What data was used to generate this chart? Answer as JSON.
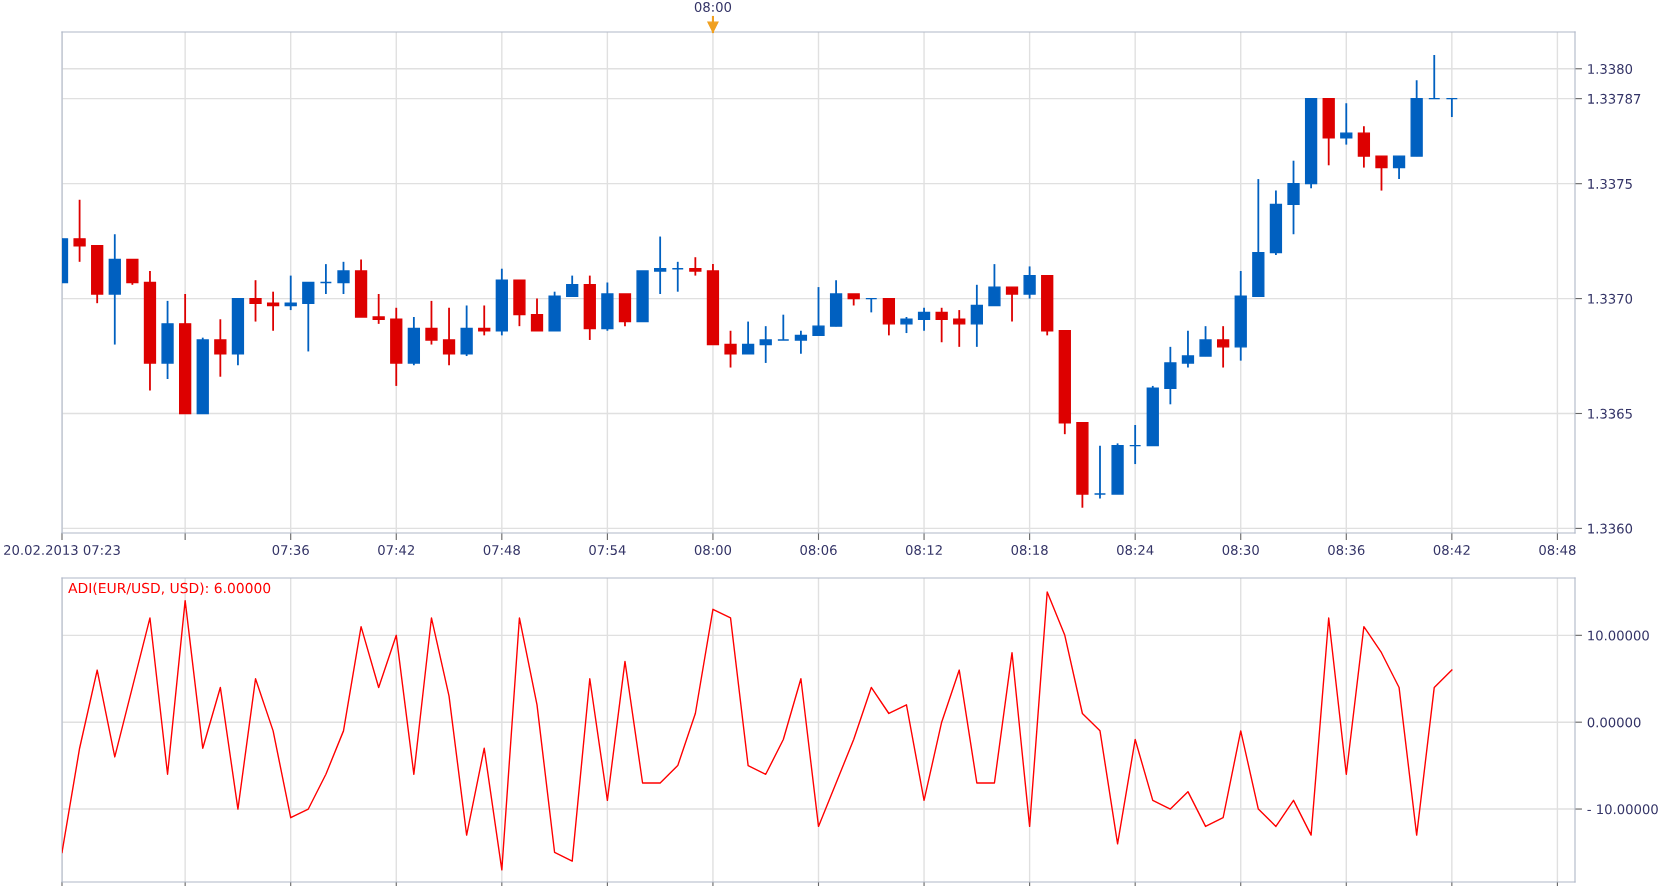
{
  "chart_data": [
    {
      "type": "candlestick",
      "x": [
        "2013-02-20T07:23",
        "2013-02-20T07:24",
        "2013-02-20T07:25",
        "2013-02-20T07:26",
        "2013-02-20T07:27",
        "2013-02-20T07:28",
        "2013-02-20T07:29",
        "2013-02-20T07:30",
        "2013-02-20T07:31",
        "2013-02-20T07:32",
        "2013-02-20T07:33",
        "2013-02-20T07:34",
        "2013-02-20T07:35",
        "2013-02-20T07:36",
        "2013-02-20T07:37",
        "2013-02-20T07:38",
        "2013-02-20T07:39",
        "2013-02-20T07:40",
        "2013-02-20T07:41",
        "2013-02-20T07:42",
        "2013-02-20T07:43",
        "2013-02-20T07:44",
        "2013-02-20T07:45",
        "2013-02-20T07:46",
        "2013-02-20T07:47",
        "2013-02-20T07:48",
        "2013-02-20T07:49",
        "2013-02-20T07:50",
        "2013-02-20T07:51",
        "2013-02-20T07:52",
        "2013-02-20T07:53",
        "2013-02-20T07:54",
        "2013-02-20T07:55",
        "2013-02-20T07:56",
        "2013-02-20T07:57",
        "2013-02-20T07:58",
        "2013-02-20T07:59",
        "2013-02-20T08:00",
        "2013-02-20T08:01",
        "2013-02-20T08:02",
        "2013-02-20T08:03",
        "2013-02-20T08:04",
        "2013-02-20T08:05",
        "2013-02-20T08:06",
        "2013-02-20T08:07",
        "2013-02-20T08:08",
        "2013-02-20T08:09",
        "2013-02-20T08:10",
        "2013-02-20T08:11",
        "2013-02-20T08:12",
        "2013-02-20T08:13",
        "2013-02-20T08:14",
        "2013-02-20T08:15",
        "2013-02-20T08:16",
        "2013-02-20T08:17",
        "2013-02-20T08:18",
        "2013-02-20T08:19",
        "2013-02-20T08:20",
        "2013-02-20T08:21",
        "2013-02-20T08:22",
        "2013-02-20T08:23",
        "2013-02-20T08:24",
        "2013-02-20T08:25",
        "2013-02-20T08:26",
        "2013-02-20T08:27",
        "2013-02-20T08:28",
        "2013-02-20T08:29",
        "2013-02-20T08:30",
        "2013-02-20T08:31",
        "2013-02-20T08:32",
        "2013-02-20T08:33",
        "2013-02-20T08:34",
        "2013-02-20T08:35",
        "2013-02-20T08:36",
        "2013-02-20T08:37",
        "2013-02-20T08:38",
        "2013-02-20T08:39",
        "2013-02-20T08:40",
        "2013-02-20T08:41",
        "2013-02-20T08:42"
      ],
      "ohlc": [
        [
          1.33707,
          1.33726,
          1.33707,
          1.33726
        ],
        [
          1.33726,
          1.33743,
          1.33716,
          1.33723
        ],
        [
          1.33723,
          1.33723,
          1.33698,
          1.33702
        ],
        [
          1.33702,
          1.33728,
          1.3368,
          1.33717
        ],
        [
          1.33717,
          1.33717,
          1.33706,
          1.33707
        ],
        [
          1.33707,
          1.33712,
          1.3366,
          1.33672
        ],
        [
          1.33672,
          1.33699,
          1.33665,
          1.33689
        ],
        [
          1.33689,
          1.33702,
          1.3365,
          1.3365
        ],
        [
          1.3365,
          1.33683,
          1.3365,
          1.33682
        ],
        [
          1.33682,
          1.33691,
          1.33666,
          1.33676
        ],
        [
          1.33676,
          1.337,
          1.33671,
          1.337
        ],
        [
          1.337,
          1.33708,
          1.3369,
          1.33698
        ],
        [
          1.33698,
          1.33703,
          1.33686,
          1.33697
        ],
        [
          1.33697,
          1.3371,
          1.33695,
          1.33698
        ],
        [
          1.33698,
          1.33707,
          1.33677,
          1.33707
        ],
        [
          1.33707,
          1.33715,
          1.33702,
          1.33707
        ],
        [
          1.33707,
          1.33716,
          1.33702,
          1.33712
        ],
        [
          1.33712,
          1.33717,
          1.33692,
          1.33692
        ],
        [
          1.33692,
          1.33702,
          1.33689,
          1.33691
        ],
        [
          1.33691,
          1.33696,
          1.33662,
          1.33672
        ],
        [
          1.33672,
          1.33692,
          1.33671,
          1.33687
        ],
        [
          1.33687,
          1.33699,
          1.3368,
          1.33682
        ],
        [
          1.33682,
          1.33696,
          1.33671,
          1.33676
        ],
        [
          1.33676,
          1.33697,
          1.33675,
          1.33687
        ],
        [
          1.33687,
          1.33697,
          1.33684,
          1.33686
        ],
        [
          1.33686,
          1.33713,
          1.33684,
          1.33708
        ],
        [
          1.33708,
          1.33708,
          1.33688,
          1.33693
        ],
        [
          1.33693,
          1.337,
          1.33686,
          1.33686
        ],
        [
          1.33686,
          1.33703,
          1.33686,
          1.33701
        ],
        [
          1.33701,
          1.3371,
          1.33701,
          1.33706
        ],
        [
          1.33706,
          1.3371,
          1.33682,
          1.33687
        ],
        [
          1.33687,
          1.33707,
          1.33686,
          1.33702
        ],
        [
          1.33702,
          1.33702,
          1.33688,
          1.3369
        ],
        [
          1.3369,
          1.33712,
          1.3369,
          1.33712
        ],
        [
          1.33712,
          1.33727,
          1.33702,
          1.33713
        ],
        [
          1.33713,
          1.33716,
          1.33703,
          1.33713
        ],
        [
          1.33713,
          1.33718,
          1.3371,
          1.33712
        ],
        [
          1.33712,
          1.33715,
          1.3368,
          1.3368
        ],
        [
          1.3368,
          1.33686,
          1.3367,
          1.33676
        ],
        [
          1.33676,
          1.3369,
          1.33676,
          1.3368
        ],
        [
          1.3368,
          1.33688,
          1.33672,
          1.33682
        ],
        [
          1.33682,
          1.33693,
          1.33682,
          1.33682
        ],
        [
          1.33682,
          1.33686,
          1.33676,
          1.33684
        ],
        [
          1.33684,
          1.33705,
          1.33684,
          1.33688
        ],
        [
          1.33688,
          1.33708,
          1.33688,
          1.33702
        ],
        [
          1.33702,
          1.33702,
          1.33697,
          1.337
        ],
        [
          1.337,
          1.337,
          1.33694,
          1.337
        ],
        [
          1.337,
          1.337,
          1.33684,
          1.33689
        ],
        [
          1.33689,
          1.33692,
          1.33685,
          1.33691
        ],
        [
          1.33691,
          1.33696,
          1.33686,
          1.33694
        ],
        [
          1.33694,
          1.33696,
          1.33681,
          1.33691
        ],
        [
          1.33691,
          1.33695,
          1.33679,
          1.33689
        ],
        [
          1.33689,
          1.33706,
          1.33679,
          1.33697
        ],
        [
          1.33697,
          1.33715,
          1.33697,
          1.33705
        ],
        [
          1.33705,
          1.33705,
          1.3369,
          1.33702
        ],
        [
          1.33702,
          1.33714,
          1.337,
          1.3371
        ],
        [
          1.3371,
          1.3371,
          1.33684,
          1.33686
        ],
        [
          1.33686,
          1.33686,
          1.33641,
          1.33646
        ],
        [
          1.33646,
          1.33646,
          1.33609,
          1.33615
        ],
        [
          1.33615,
          1.33636,
          1.33613,
          1.33615
        ],
        [
          1.33615,
          1.33637,
          1.33615,
          1.33636
        ],
        [
          1.33636,
          1.33645,
          1.33628,
          1.33636
        ],
        [
          1.33636,
          1.33662,
          1.33636,
          1.33661
        ],
        [
          1.33661,
          1.33679,
          1.33654,
          1.33672
        ],
        [
          1.33672,
          1.33686,
          1.3367,
          1.33675
        ],
        [
          1.33675,
          1.33688,
          1.33675,
          1.33682
        ],
        [
          1.33682,
          1.33688,
          1.3367,
          1.33679
        ],
        [
          1.33679,
          1.33712,
          1.33673,
          1.33701
        ],
        [
          1.33701,
          1.33752,
          1.33701,
          1.3372
        ],
        [
          1.3372,
          1.33747,
          1.33719,
          1.33741
        ],
        [
          1.33741,
          1.3376,
          1.33728,
          1.3375
        ],
        [
          1.3375,
          1.33787,
          1.33748,
          1.33787
        ],
        [
          1.33787,
          1.33787,
          1.33758,
          1.3377
        ],
        [
          1.3377,
          1.33785,
          1.33767,
          1.33772
        ],
        [
          1.33772,
          1.33775,
          1.33757,
          1.33762
        ],
        [
          1.33762,
          1.33762,
          1.33747,
          1.33757
        ],
        [
          1.33757,
          1.33762,
          1.33752,
          1.33762
        ],
        [
          1.33762,
          1.33795,
          1.33762,
          1.33787
        ],
        [
          1.33787,
          1.33806,
          1.33787,
          1.33787
        ],
        [
          1.33787,
          1.33787,
          1.33779,
          1.33787
        ]
      ],
      "colors": [
        "#0060c0",
        "#dd0000",
        "#dd0000",
        "#0060c0",
        "#dd0000",
        "#dd0000",
        "#0060c0",
        "#dd0000",
        "#0060c0",
        "#dd0000",
        "#0060c0",
        "#dd0000",
        "#dd0000",
        "#0060c0",
        "#0060c0",
        "#0060c0",
        "#0060c0",
        "#dd0000",
        "#dd0000",
        "#dd0000",
        "#0060c0",
        "#dd0000",
        "#dd0000",
        "#0060c0",
        "#dd0000",
        "#0060c0",
        "#dd0000",
        "#dd0000",
        "#0060c0",
        "#0060c0",
        "#dd0000",
        "#0060c0",
        "#dd0000",
        "#0060c0",
        "#0060c0",
        "#0060c0",
        "#dd0000",
        "#dd0000",
        "#dd0000",
        "#0060c0",
        "#0060c0",
        "#0060c0",
        "#0060c0",
        "#0060c0",
        "#0060c0",
        "#dd0000",
        "#0060c0",
        "#dd0000",
        "#0060c0",
        "#0060c0",
        "#dd0000",
        "#dd0000",
        "#0060c0",
        "#0060c0",
        "#dd0000",
        "#0060c0",
        "#dd0000",
        "#dd0000",
        "#dd0000",
        "#0060c0",
        "#0060c0",
        "#0060c0",
        "#0060c0",
        "#0060c0",
        "#0060c0",
        "#0060c0",
        "#dd0000",
        "#0060c0",
        "#0060c0",
        "#0060c0",
        "#0060c0",
        "#0060c0",
        "#dd0000",
        "#0060c0",
        "#dd0000",
        "#dd0000",
        "#0060c0",
        "#0060c0",
        "#0060c0",
        "#0060c0"
      ],
      "xlim": [
        "2013-02-20T07:23",
        "2013-02-20T08:49"
      ],
      "xticks": [
        {
          "value": "2013-02-20T07:23",
          "label": "20.02.2013 07:23"
        },
        {
          "value": "2013-02-20T07:30",
          "label": null
        },
        {
          "value": "2013-02-20T07:36",
          "label": "07:36"
        },
        {
          "value": "2013-02-20T07:42",
          "label": "07:42"
        },
        {
          "value": "2013-02-20T07:48",
          "label": "07:48"
        },
        {
          "value": "2013-02-20T07:54",
          "label": "07:54"
        },
        {
          "value": "2013-02-20T08:00",
          "label": "08:00"
        },
        {
          "value": "2013-02-20T08:06",
          "label": "08:06"
        },
        {
          "value": "2013-02-20T08:12",
          "label": "08:12"
        },
        {
          "value": "2013-02-20T08:18",
          "label": "08:18"
        },
        {
          "value": "2013-02-20T08:24",
          "label": "08:24"
        },
        {
          "value": "2013-02-20T08:30",
          "label": "08:30"
        },
        {
          "value": "2013-02-20T08:36",
          "label": "08:36"
        },
        {
          "value": "2013-02-20T08:42",
          "label": "08:42"
        },
        {
          "value": "2013-02-20T08:48",
          "label": "08:48"
        }
      ],
      "ref_lines": [
        {
          "axis": "x",
          "value": "2013-02-20T08:00",
          "label": "08:00",
          "color": "#f0a020"
        }
      ],
      "ylim": [
        1.33598,
        1.33816
      ],
      "yticks": [
        {
          "value": 1.336,
          "label": "1.3360"
        },
        {
          "value": 1.3365,
          "label": "1.3365"
        },
        {
          "value": 1.337,
          "label": "1.3370"
        },
        {
          "value": 1.3375,
          "label": "1.3375"
        },
        {
          "value": 1.33787,
          "label": "1.33787"
        },
        {
          "value": 1.338,
          "label": "1.3380"
        }
      ],
      "grid": true
    },
    {
      "type": "line",
      "title": "ADI(EUR/USD, USD): 6.00000",
      "x": [
        "2013-02-20T07:23",
        "2013-02-20T07:24",
        "2013-02-20T07:25",
        "2013-02-20T07:26",
        "2013-02-20T07:27",
        "2013-02-20T07:28",
        "2013-02-20T07:29",
        "2013-02-20T07:30",
        "2013-02-20T07:31",
        "2013-02-20T07:32",
        "2013-02-20T07:33",
        "2013-02-20T07:34",
        "2013-02-20T07:35",
        "2013-02-20T07:36",
        "2013-02-20T07:37",
        "2013-02-20T07:38",
        "2013-02-20T07:39",
        "2013-02-20T07:40",
        "2013-02-20T07:41",
        "2013-02-20T07:42",
        "2013-02-20T07:43",
        "2013-02-20T07:44",
        "2013-02-20T07:45",
        "2013-02-20T07:46",
        "2013-02-20T07:47",
        "2013-02-20T07:48",
        "2013-02-20T07:49",
        "2013-02-20T07:50",
        "2013-02-20T07:51",
        "2013-02-20T07:52",
        "2013-02-20T07:53",
        "2013-02-20T07:54",
        "2013-02-20T07:55",
        "2013-02-20T07:56",
        "2013-02-20T07:57",
        "2013-02-20T07:58",
        "2013-02-20T07:59",
        "2013-02-20T08:00",
        "2013-02-20T08:01",
        "2013-02-20T08:02",
        "2013-02-20T08:03",
        "2013-02-20T08:04",
        "2013-02-20T08:05",
        "2013-02-20T08:06",
        "2013-02-20T08:07",
        "2013-02-20T08:08",
        "2013-02-20T08:09",
        "2013-02-20T08:10",
        "2013-02-20T08:11",
        "2013-02-20T08:12",
        "2013-02-20T08:13",
        "2013-02-20T08:14",
        "2013-02-20T08:15",
        "2013-02-20T08:16",
        "2013-02-20T08:17",
        "2013-02-20T08:18",
        "2013-02-20T08:19",
        "2013-02-20T08:20",
        "2013-02-20T08:21",
        "2013-02-20T08:22",
        "2013-02-20T08:23",
        "2013-02-20T08:24",
        "2013-02-20T08:25",
        "2013-02-20T08:26",
        "2013-02-20T08:27",
        "2013-02-20T08:28",
        "2013-02-20T08:29",
        "2013-02-20T08:30",
        "2013-02-20T08:31",
        "2013-02-20T08:32",
        "2013-02-20T08:33",
        "2013-02-20T08:34",
        "2013-02-20T08:35",
        "2013-02-20T08:36",
        "2013-02-20T08:37",
        "2013-02-20T08:38",
        "2013-02-20T08:39",
        "2013-02-20T08:40",
        "2013-02-20T08:41",
        "2013-02-20T08:42"
      ],
      "series": [
        {
          "color": "#ff0000",
          "values": [
            -15,
            -3,
            6,
            -4,
            4,
            12,
            -6,
            14,
            -3,
            4,
            -10,
            5,
            -1,
            -11,
            -10,
            -6,
            -1,
            11,
            4,
            10,
            -6,
            12,
            3,
            -13,
            -3,
            -17,
            12,
            2,
            -15,
            -16,
            5,
            -9,
            7,
            -7,
            -7,
            -5,
            1,
            13,
            12,
            -5,
            -6,
            -2,
            5,
            -12,
            -7,
            -2,
            4,
            1,
            2,
            -9,
            0,
            6,
            -7,
            -7,
            8,
            -12,
            15,
            10,
            1,
            -1,
            -14,
            -2,
            -9,
            -10,
            -8,
            -12,
            -11,
            -1,
            -10,
            -12,
            -9,
            -13,
            12,
            -6,
            11,
            8,
            4,
            -13,
            4,
            6
          ]
        }
      ],
      "xlim": [
        "2013-02-20T07:23",
        "2013-02-20T08:49"
      ],
      "ylim": [
        -18.4,
        16.6
      ],
      "yticks": [
        {
          "value": 10,
          "label": "10.00000"
        },
        {
          "value": 0,
          "label": "0.00000"
        },
        {
          "value": -10,
          "label": "- 10.00000"
        }
      ],
      "grid": true,
      "tick_labels": "y"
    }
  ]
}
